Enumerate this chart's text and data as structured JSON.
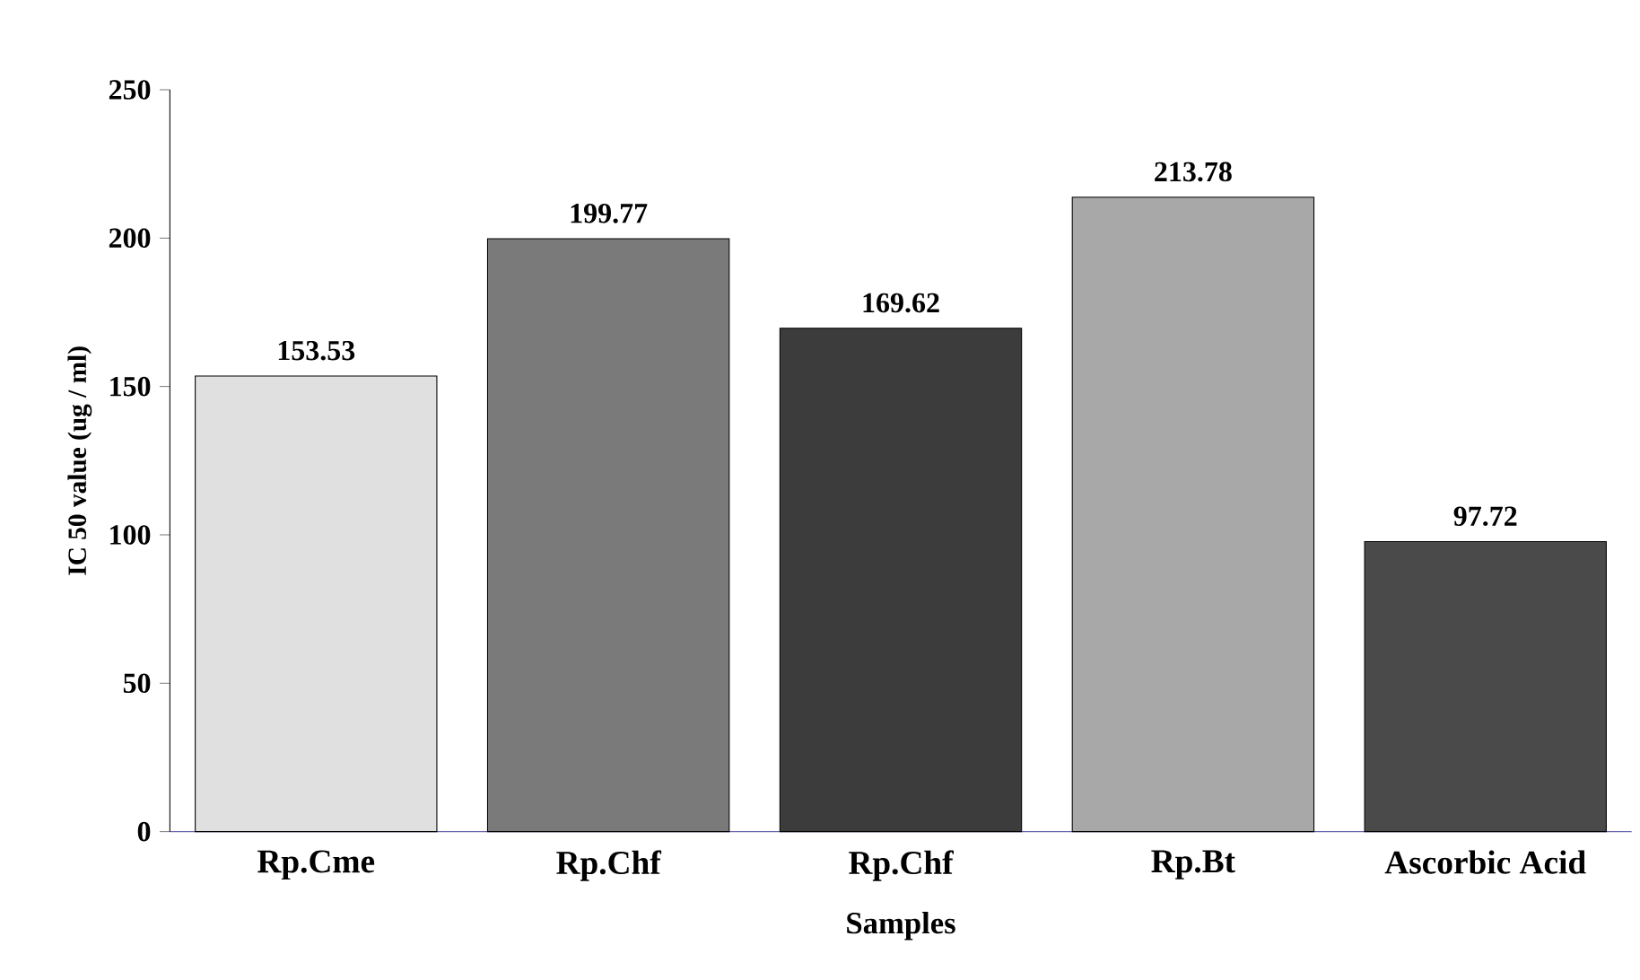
{
  "chart_data": {
    "type": "bar",
    "xlabel": "Samples",
    "ylabel": "IC 50 value (ug / ml)",
    "categories": [
      "Rp.Cme",
      "Rp.Chf",
      "Rp.Chf",
      "Rp.Bt",
      "Ascorbic Acid"
    ],
    "values": [
      153.53,
      199.77,
      169.62,
      213.78,
      97.72
    ],
    "colors": [
      "#e0e0e0",
      "#7a7a7a",
      "#3c3c3c",
      "#a8a8a8",
      "#4a4a4a"
    ],
    "ylim": [
      0,
      250
    ],
    "yticks": [
      0,
      50,
      100,
      150,
      200,
      250
    ],
    "data_labels": true
  }
}
